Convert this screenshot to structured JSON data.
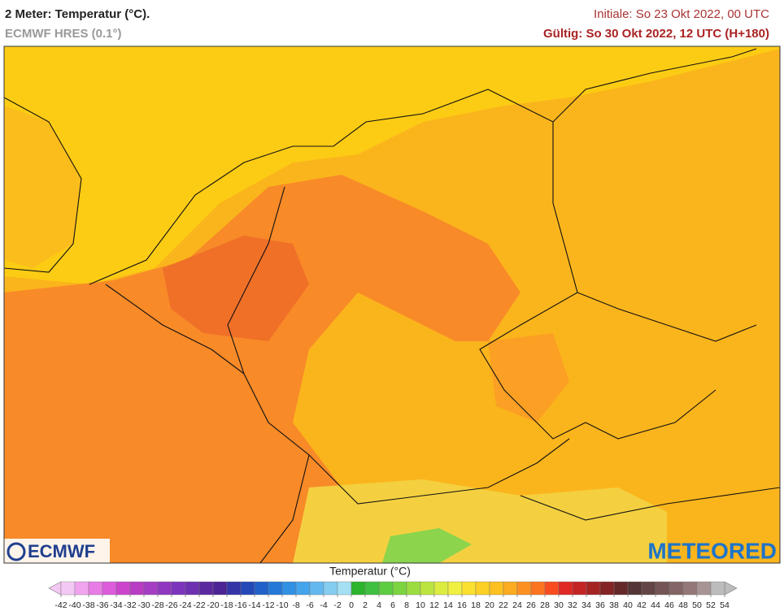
{
  "header": {
    "title": "2 Meter: Temperatur (°C).",
    "model": "ECMWF HRES (0.1°)",
    "init": "Initiale: So 23 Okt 2022, 00 UTC",
    "valid": "Gültig: So 30 Okt 2022, 12 UTC (H+180)"
  },
  "logos": {
    "left": "ECMWF",
    "right": "METEORED"
  },
  "colorbar": {
    "title": "Temperatur (°C)",
    "ticks": [
      -42,
      -40,
      -38,
      -36,
      -34,
      -32,
      -30,
      -28,
      -26,
      -24,
      -22,
      -20,
      -18,
      -16,
      -14,
      -12,
      -10,
      -8,
      -6,
      -4,
      -2,
      0,
      2,
      4,
      6,
      8,
      10,
      12,
      14,
      16,
      18,
      20,
      22,
      24,
      26,
      28,
      30,
      32,
      34,
      36,
      38,
      40,
      42,
      44,
      46,
      48,
      50,
      52,
      54
    ],
    "colors": [
      "#f4c8f4",
      "#f0a4ee",
      "#e87ce6",
      "#dc5cdc",
      "#cc44cc",
      "#b83cc4",
      "#a43cc4",
      "#9038c0",
      "#7c34bc",
      "#6c30b0",
      "#5c28a0",
      "#4c2494",
      "#3434a8",
      "#2448b8",
      "#2060c8",
      "#2478d8",
      "#3090e4",
      "#44a4ec",
      "#64b8f0",
      "#84ccf0",
      "#a4e0f4",
      "#2cb42c",
      "#40c040",
      "#5ccc40",
      "#7cd440",
      "#9cdc40",
      "#bce440",
      "#dcec40",
      "#f0f040",
      "#fce030",
      "#fcd024",
      "#fcc020",
      "#fcac20",
      "#fc9020",
      "#fc7420",
      "#f84c20",
      "#e02824",
      "#c42424",
      "#a42424",
      "#842424",
      "#642828",
      "#543434",
      "#644444",
      "#745454",
      "#846464",
      "#947878",
      "#a89494",
      "#bcbcbc"
    ]
  }
}
